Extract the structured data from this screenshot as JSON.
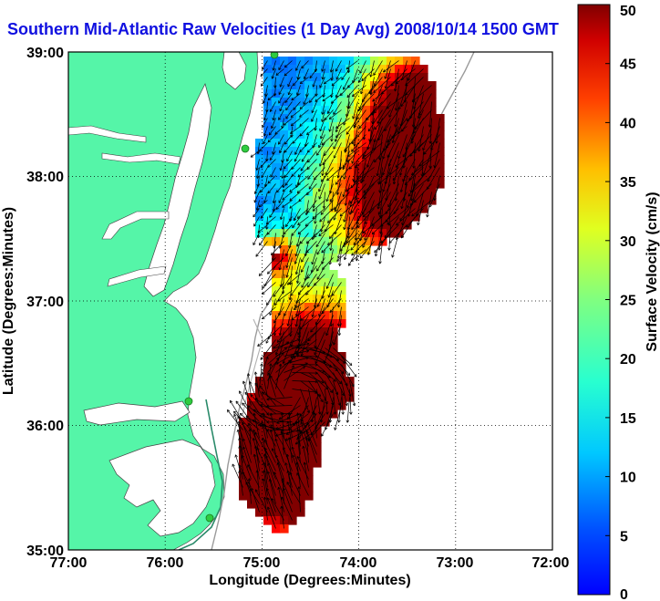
{
  "title": "Southern Mid-Atlantic Raw Velocities (1 Day Avg) 2008/10/14 1500 GMT",
  "map": {
    "xlabel": "Longitude (Degrees:Minutes)",
    "ylabel": "Latitude (Degrees:Minutes)",
    "x_ticks": [
      "77:00",
      "76:00",
      "75:00",
      "74:00",
      "73:00",
      "72:00"
    ],
    "y_ticks": [
      "39:00",
      "38:00",
      "37:00",
      "36:00",
      "35:00"
    ],
    "lon_range": [
      -77,
      -72
    ],
    "lat_range": [
      35,
      39
    ],
    "grid": "dotted",
    "land_color": "#55f5a8",
    "ocean_color": "#ffffff",
    "arrow_color": "#000000",
    "station_markers": 4
  },
  "colorbar": {
    "label": "Surface Velocity (cm/s)",
    "ticks": [
      "50",
      "45",
      "40",
      "35",
      "30",
      "25",
      "20",
      "15",
      "10",
      "5",
      "0"
    ],
    "range": [
      0,
      50
    ],
    "colormap": "jet"
  }
}
